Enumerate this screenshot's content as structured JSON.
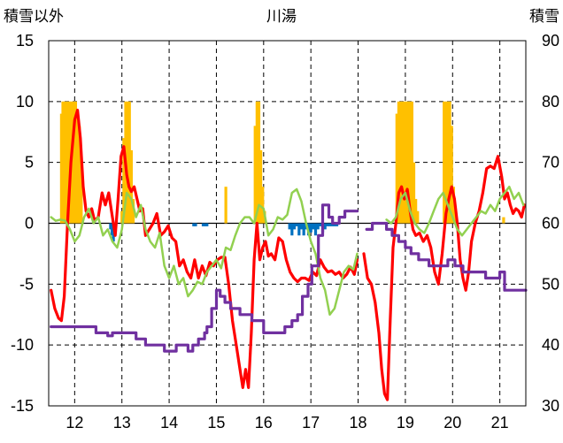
{
  "chart_data": {
    "type": "line",
    "title": "川湯",
    "left_axis_title": "積雪以外",
    "right_axis_title": "積雪",
    "x_ticks": [
      "12",
      "13",
      "14",
      "15",
      "16",
      "17",
      "18",
      "19",
      "20",
      "21"
    ],
    "x_range": [
      2011.45,
      2021.55
    ],
    "y_left": {
      "ticks": [
        "15",
        "10",
        "5",
        "0",
        "-5",
        "-10",
        "-15"
      ],
      "lim": [
        -15,
        15
      ]
    },
    "y_right": {
      "ticks": [
        "90",
        "80",
        "70",
        "60",
        "50",
        "40",
        "30"
      ],
      "lim": [
        30,
        90
      ]
    },
    "grid": true,
    "legend": "none",
    "colors": {
      "red": "#ff0000",
      "green": "#92d050",
      "purple": "#7030a0",
      "snow_bars": "#ffc000",
      "deficit_bars": "#0070c0"
    },
    "series": [
      {
        "axis": "left",
        "color_key": "red",
        "x": [
          2011.5,
          2011.58,
          2011.66,
          2011.72,
          2011.78,
          2011.85,
          2011.92,
          2012.0,
          2012.06,
          2012.12,
          2012.18,
          2012.24,
          2012.3,
          2012.36,
          2012.42,
          2012.5,
          2012.58,
          2012.65,
          2012.72,
          2012.8,
          2012.86,
          2012.92,
          2012.98,
          2013.04,
          2013.1,
          2013.15,
          2013.2,
          2013.26,
          2013.32,
          2013.38,
          2013.44,
          2013.5,
          2013.58,
          2013.66,
          2013.74,
          2013.82,
          2013.9,
          2013.98,
          2014.06,
          2014.14,
          2014.22,
          2014.3,
          2014.38,
          2014.46,
          2014.54,
          2014.62,
          2014.7,
          2014.78,
          2014.86,
          2014.94,
          2015.02,
          2015.1,
          2015.18,
          2015.26,
          2015.34,
          2015.42,
          2015.5,
          2015.56,
          2015.62,
          2015.68,
          2015.74,
          2015.8,
          2015.86,
          2015.92,
          2015.98,
          2016.04,
          2016.1,
          2016.16,
          2016.24,
          2016.32,
          2016.4,
          2016.48,
          2016.56,
          2016.64,
          2016.72,
          2016.8,
          2016.88,
          2016.96,
          2017.04,
          2017.12,
          2017.2,
          2017.28,
          2017.36,
          2017.44,
          2017.52,
          2017.6,
          2017.68,
          2017.76,
          2017.84,
          2017.92,
          2017.98
        ],
        "y": [
          -5.5,
          -7.0,
          -7.8,
          -8.0,
          -6.0,
          0.0,
          5.0,
          8.5,
          9.3,
          7.0,
          3.0,
          1.0,
          0.5,
          1.2,
          0.2,
          0.5,
          2.5,
          1.5,
          2.5,
          0.5,
          -1.0,
          2.0,
          5.5,
          6.3,
          4.0,
          3.0,
          2.6,
          3.0,
          2.0,
          1.0,
          1.2,
          -1.0,
          -0.5,
          0.0,
          0.8,
          -1.0,
          -0.7,
          -0.2,
          -1.2,
          -1.5,
          -3.5,
          -3.0,
          -4.0,
          -4.5,
          -3.0,
          -4.5,
          -3.5,
          -4.3,
          -3.2,
          -3.5,
          -3.0,
          -2.8,
          -2.8,
          -5.0,
          -8.0,
          -10.0,
          -12.0,
          -13.5,
          -12.0,
          -13.5,
          -9.0,
          -3.0,
          0.0,
          -3.0,
          -2.0,
          -1.5,
          -2.7,
          -2.5,
          -3.0,
          -1.2,
          -1.5,
          -3.0,
          -4.0,
          -4.5,
          -4.8,
          -4.5,
          -4.5,
          -4.7,
          -4.0,
          -4.3,
          -3.0,
          -3.6,
          -4.0,
          -3.9,
          -4.2,
          -4.0,
          -4.5,
          -4.2,
          -3.6,
          -4.2,
          -3.0
        ]
      },
      {
        "axis": "left",
        "color_key": "red",
        "x": [
          2018.12,
          2018.2,
          2018.28,
          2018.36,
          2018.44,
          2018.5,
          2018.56,
          2018.62,
          2018.68,
          2018.74,
          2018.8,
          2018.86,
          2018.92,
          2018.98,
          2019.04,
          2019.1,
          2019.16,
          2019.22,
          2019.3,
          2019.38,
          2019.46,
          2019.54,
          2019.62,
          2019.7,
          2019.78,
          2019.86,
          2019.92,
          2019.98,
          2020.04,
          2020.1,
          2020.16,
          2020.22,
          2020.28,
          2020.34,
          2020.4,
          2020.48,
          2020.56,
          2020.64,
          2020.72,
          2020.8,
          2020.88,
          2020.96,
          2021.04,
          2021.1,
          2021.16,
          2021.22,
          2021.28,
          2021.34,
          2021.4,
          2021.46,
          2021.52
        ],
        "y": [
          -2.5,
          -4.5,
          -5.0,
          -6.5,
          -9.0,
          -12.0,
          -14.0,
          -14.5,
          -8.0,
          -2.0,
          0.0,
          2.5,
          3.0,
          2.0,
          2.8,
          1.0,
          -0.5,
          -1.0,
          -0.8,
          -1.5,
          -1.0,
          -2.0,
          -4.0,
          -5.0,
          -2.5,
          0.8,
          2.0,
          3.0,
          2.0,
          0.0,
          -3.0,
          -4.5,
          -5.5,
          -4.0,
          -1.5,
          0.0,
          1.0,
          2.5,
          4.5,
          4.7,
          4.5,
          5.5,
          3.8,
          2.0,
          2.5,
          1.5,
          0.8,
          1.2,
          1.0,
          0.5,
          1.5
        ]
      },
      {
        "axis": "left",
        "color_key": "green",
        "x": [
          2011.5,
          2011.6,
          2011.7,
          2011.8,
          2011.9,
          2012.0,
          2012.1,
          2012.2,
          2012.3,
          2012.4,
          2012.5,
          2012.6,
          2012.7,
          2012.8,
          2012.9,
          2013.0,
          2013.1,
          2013.2,
          2013.3,
          2013.4,
          2013.5,
          2013.6,
          2013.7,
          2013.8,
          2013.9,
          2014.0,
          2014.1,
          2014.2,
          2014.3,
          2014.4,
          2014.5,
          2014.6,
          2014.7,
          2014.8,
          2014.9,
          2015.0,
          2015.1,
          2015.2,
          2015.3,
          2015.4,
          2015.5,
          2015.6,
          2015.7,
          2015.8,
          2015.9,
          2016.0,
          2016.1,
          2016.2,
          2016.3,
          2016.4,
          2016.5,
          2016.6,
          2016.7,
          2016.8,
          2016.9,
          2017.0,
          2017.1,
          2017.2,
          2017.3,
          2017.4,
          2017.5,
          2017.6,
          2017.7,
          2017.8,
          2017.9,
          2017.98
        ],
        "y": [
          0.5,
          0.2,
          0.3,
          0.2,
          -0.5,
          -1.5,
          -1.0,
          0.5,
          1.2,
          0.0,
          0.5,
          -1.0,
          -0.5,
          -1.5,
          -2.0,
          -0.5,
          2.5,
          2.0,
          0.5,
          1.5,
          -0.5,
          -1.5,
          -2.0,
          -0.8,
          -3.5,
          -4.5,
          -3.5,
          -5.0,
          -4.5,
          -6.0,
          -5.5,
          -4.8,
          -5.0,
          -4.0,
          -3.5,
          -3.0,
          -3.7,
          -2.0,
          -2.2,
          -1.0,
          0.0,
          0.5,
          0.5,
          0.0,
          1.5,
          1.2,
          -1.0,
          -0.5,
          0.5,
          0.3,
          0.7,
          2.5,
          2.8,
          1.8,
          0.0,
          -1.5,
          -2.5,
          -4.5,
          -5.5,
          -7.5,
          -7.0,
          -5.5,
          -4.0,
          -3.5,
          -3.8,
          -2.5
        ]
      },
      {
        "axis": "left",
        "color_key": "green",
        "x": [
          2018.6,
          2018.7,
          2018.8,
          2018.9,
          2019.0,
          2019.1,
          2019.2,
          2019.3,
          2019.4,
          2019.5,
          2019.6,
          2019.7,
          2019.8,
          2019.9,
          2020.0,
          2020.1,
          2020.2,
          2020.3,
          2020.4,
          2020.5,
          2020.6,
          2020.7,
          2020.8,
          2020.9,
          2021.0,
          2021.1,
          2021.2,
          2021.3,
          2021.4,
          2021.5
        ],
        "y": [
          0.3,
          0.0,
          0.5,
          2.0,
          2.5,
          1.0,
          0.0,
          -0.5,
          -0.8,
          0.0,
          1.0,
          2.0,
          2.5,
          1.5,
          0.5,
          -0.5,
          -1.0,
          -0.5,
          0.0,
          0.5,
          1.0,
          0.8,
          1.5,
          1.0,
          2.0,
          2.5,
          3.0,
          2.0,
          2.5,
          1.5
        ]
      },
      {
        "axis": "right",
        "color_key": "purple",
        "x": [
          2011.5,
          2012.45,
          2012.45,
          2012.7,
          2012.7,
          2012.8,
          2012.8,
          2013.3,
          2013.3,
          2013.5,
          2013.5,
          2013.9,
          2013.9,
          2014.15,
          2014.15,
          2014.4,
          2014.4,
          2014.5,
          2014.5,
          2014.62,
          2014.62,
          2014.75,
          2014.75,
          2014.8,
          2014.8,
          2014.9,
          2014.9,
          2015.0,
          2015.0,
          2015.08,
          2015.08,
          2015.18,
          2015.18,
          2015.3,
          2015.3,
          2015.5,
          2015.5,
          2015.75,
          2015.75,
          2016.0,
          2016.0,
          2016.45,
          2016.45,
          2016.6,
          2016.6,
          2016.72,
          2016.72,
          2016.82,
          2016.82,
          2016.94,
          2016.94,
          2017.02,
          2017.02,
          2017.16,
          2017.16,
          2017.25,
          2017.25,
          2017.38,
          2017.38,
          2017.46,
          2017.46,
          2017.6,
          2017.6,
          2017.72,
          2017.72,
          2017.82,
          2017.82,
          2017.98
        ],
        "y": [
          43,
          43,
          42,
          42,
          41.5,
          41.5,
          42,
          42,
          41,
          41,
          40,
          40,
          39,
          39,
          40,
          40,
          39,
          39,
          40,
          40,
          41,
          41,
          42,
          42,
          43,
          43,
          46,
          46,
          49,
          49,
          48,
          48,
          47,
          47,
          46,
          46,
          45,
          45,
          44,
          44,
          42,
          42,
          43,
          43,
          44,
          44,
          45,
          45,
          48,
          48,
          50,
          50,
          53,
          53,
          58,
          58,
          63,
          63,
          61,
          61,
          60,
          60,
          61,
          61,
          62,
          62,
          62,
          62
        ]
      },
      {
        "axis": "right",
        "color_key": "purple",
        "x": [
          2018.18,
          2018.3,
          2018.3,
          2018.6,
          2018.6,
          2018.72,
          2018.72,
          2018.86,
          2018.86,
          2019.0,
          2019.0,
          2019.12,
          2019.12,
          2019.28,
          2019.28,
          2019.5,
          2019.5,
          2019.9,
          2019.9,
          2020.05,
          2020.05,
          2020.22,
          2020.22,
          2020.7,
          2020.7,
          2021.0,
          2021.0,
          2021.1,
          2021.1,
          2021.55
        ],
        "y": [
          59,
          59,
          60,
          60,
          59,
          59,
          58,
          58,
          57,
          57,
          56,
          56,
          55,
          55,
          54,
          54,
          53,
          53,
          54,
          54,
          53,
          53,
          52,
          52,
          51,
          51,
          52,
          52,
          49,
          49
        ]
      }
    ],
    "snow_bars": {
      "axis": "right",
      "color_key": "snow_bars",
      "x": [
        2011.72,
        2011.75,
        2011.78,
        2011.82,
        2011.86,
        2011.9,
        2011.94,
        2011.98,
        2012.02,
        2012.06,
        2012.1,
        2012.14,
        2013.0,
        2013.04,
        2013.08,
        2013.12,
        2013.16,
        2013.2,
        2013.24,
        2015.2,
        2015.82,
        2015.86,
        2015.9,
        2015.94,
        2015.98,
        2016.02,
        2018.82,
        2018.86,
        2018.9,
        2018.94,
        2018.98,
        2019.02,
        2019.06,
        2019.1,
        2019.14,
        2019.18,
        2019.22,
        2019.26,
        2019.82,
        2019.86,
        2019.9,
        2019.94,
        2019.98,
        2020.02,
        2020.06,
        2021.08
      ],
      "y": [
        78,
        80,
        80,
        80,
        80,
        80,
        80,
        80,
        80,
        78,
        76,
        70,
        62,
        74,
        80,
        80,
        80,
        72,
        64,
        66,
        76,
        80,
        80,
        72,
        66,
        62,
        78,
        80,
        80,
        80,
        80,
        80,
        80,
        80,
        80,
        70,
        64,
        62,
        80,
        80,
        80,
        80,
        76,
        66,
        62,
        61
      ]
    },
    "deficit_bars": {
      "axis": "right",
      "color_key": "deficit_bars",
      "x": [
        2012.76,
        2012.79,
        2012.82,
        2012.85,
        2014.52,
        2014.56,
        2014.72,
        2014.76,
        2014.8,
        2016.55,
        2016.6,
        2016.65,
        2016.7,
        2016.75,
        2016.8,
        2016.85,
        2016.9,
        2016.95,
        2017.0,
        2017.05,
        2017.1,
        2017.15,
        2017.2,
        2017.25,
        2017.3,
        2017.35,
        2017.4,
        2017.45,
        2017.5,
        2017.55
      ],
      "y": [
        59,
        58,
        57,
        59,
        59.5,
        59.5,
        59.5,
        59.5,
        59.5,
        59,
        58,
        59,
        59.5,
        58,
        59,
        58,
        59,
        58,
        58.5,
        59,
        58,
        59,
        59.5,
        58.5,
        59,
        59.5,
        59.5,
        59.5,
        59.5,
        59.5
      ]
    }
  }
}
